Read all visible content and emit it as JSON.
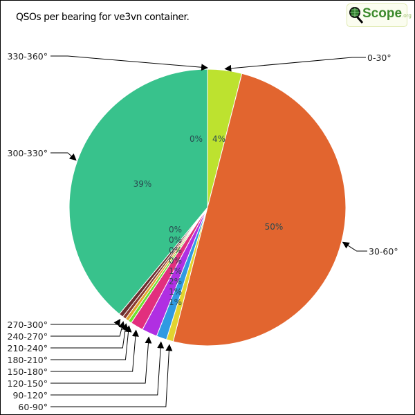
{
  "chart_data": {
    "type": "pie",
    "title": "QSOs per bearing for ve3vn container.",
    "start": "top, clockwise",
    "categories": [
      "0-30°",
      "30-60°",
      "60-90°",
      "90-120°",
      "120-150°",
      "150-180°",
      "180-210°",
      "210-240°",
      "240-270°",
      "270-300°",
      "300-330°",
      "330-360°"
    ],
    "values": [
      4,
      50,
      0.8,
      1.2,
      1.8,
      1.5,
      0.4,
      0.4,
      0.4,
      0.5,
      39,
      0
    ],
    "data_labels": [
      "4%",
      "50%",
      "1%",
      "1%",
      "2%",
      "1%",
      "0%",
      "0%",
      "0%",
      "0%",
      "39%",
      "0%"
    ],
    "colors": [
      "#bde22f",
      "#e2652f",
      "#e2d42f",
      "#2f9ae2",
      "#b02fe2",
      "#e22f7e",
      "#6ee22f",
      "#e2a62f",
      "#8a3a2f",
      "#6b2f2f",
      "#38c28c",
      "#38c28c"
    ]
  },
  "logo": {
    "text": "Scope",
    "suffix": ".org"
  }
}
